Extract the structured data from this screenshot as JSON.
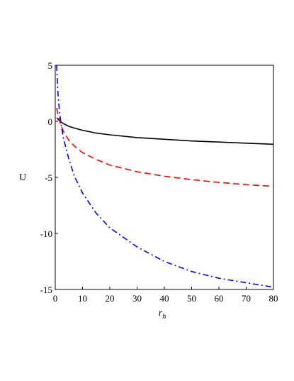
{
  "chart_data": {
    "type": "line",
    "title": "",
    "xlabel": "r",
    "xlabel_subscript": "h",
    "ylabel": "U",
    "xlim": [
      0,
      80
    ],
    "ylim": [
      -15,
      5
    ],
    "x_ticks": [
      0,
      10,
      20,
      30,
      40,
      50,
      60,
      70,
      80
    ],
    "y_ticks": [
      5,
      0,
      -5,
      -10,
      -15
    ],
    "x_tick_labels": [
      "0",
      "10",
      "20",
      "30",
      "40",
      "50",
      "60",
      "70",
      "80"
    ],
    "y_tick_labels": [
      "5",
      "0",
      "-5",
      "-10",
      "-15"
    ],
    "grid": false,
    "legend": "none",
    "series": [
      {
        "color": "#000000",
        "style": "solid",
        "x": [
          0.5,
          1,
          2,
          3,
          5,
          7,
          10,
          15,
          20,
          30,
          40,
          50,
          60,
          70,
          80
        ],
        "y": [
          0.3,
          0.2,
          -0.05,
          -0.2,
          -0.45,
          -0.6,
          -0.8,
          -1.05,
          -1.2,
          -1.45,
          -1.6,
          -1.75,
          -1.85,
          -1.95,
          -2.05
        ]
      },
      {
        "color": "#ff0000",
        "style": "dashed",
        "x": [
          0.5,
          1,
          2,
          3,
          5,
          7,
          10,
          15,
          20,
          30,
          40,
          50,
          60,
          70,
          80
        ],
        "y": [
          1.2,
          0.6,
          -0.3,
          -0.9,
          -1.7,
          -2.2,
          -2.8,
          -3.4,
          -3.9,
          -4.5,
          -4.9,
          -5.2,
          -5.45,
          -5.65,
          -5.8
        ]
      },
      {
        "color": "#0000ff",
        "style": "dashdot",
        "x": [
          0.5,
          1,
          1.5,
          2,
          3,
          5,
          7,
          10,
          15,
          20,
          30,
          40,
          50,
          60,
          70,
          80
        ],
        "y": [
          5.0,
          2.5,
          1.0,
          0.0,
          -1.5,
          -3.4,
          -4.9,
          -6.4,
          -8.2,
          -9.5,
          -11.2,
          -12.5,
          -13.4,
          -14.0,
          -14.4,
          -14.8
        ]
      }
    ]
  }
}
